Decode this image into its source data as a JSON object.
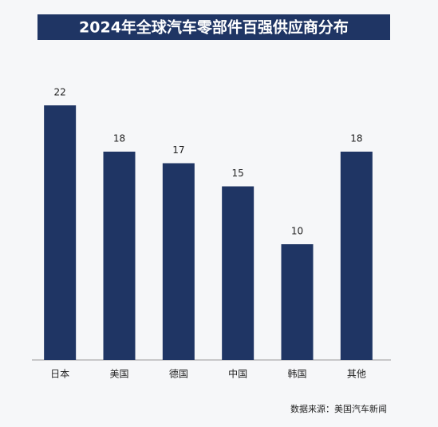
{
  "chart_data": {
    "type": "bar",
    "title": "2024年全球汽车零部件百强供应商分布",
    "categories": [
      "日本",
      "美国",
      "德国",
      "中国",
      "韩国",
      "其他"
    ],
    "values": [
      22,
      18,
      17,
      15,
      10,
      18
    ],
    "color": "#1f3564",
    "ylim": [
      0,
      22
    ],
    "source": "数据来源：美国汽车新闻"
  }
}
